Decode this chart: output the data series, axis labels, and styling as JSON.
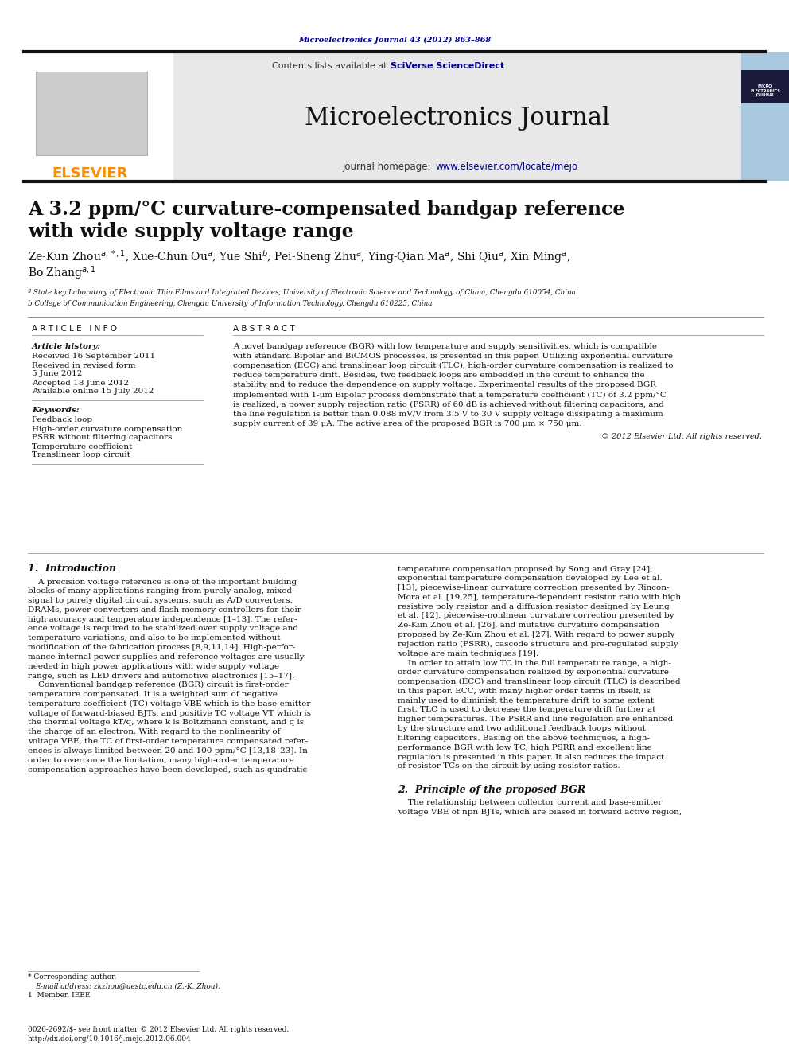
{
  "page_background": "#ffffff",
  "top_citation": "Microelectronics Journal 43 (2012) 863–868",
  "top_citation_color": "#00008B",
  "header_bg": "#e8e8e8",
  "header_journal_name": "Microelectronics Journal",
  "header_homepage_prefix": "journal homepage: ",
  "header_homepage_url": "www.elsevier.com/locate/mejo",
  "elsevier_color": "#FF8C00",
  "link_color": "#00008B",
  "paper_title_line1": "A 3.2 ppm/°C curvature-compensated bandgap reference",
  "paper_title_line2": "with wide supply voltage range",
  "affil_a": "ª State key Laboratory of Electronic Thin Films and Integrated Devices, University of Electronic Science and Technology of China, Chengdu 610054, China",
  "affil_b": "b College of Communication Engineering, Chengdu University of Information Technology, Chengdu 610225, China",
  "article_history_title": "Article history:",
  "received": "Received 16 September 2011",
  "received_revised": "Received in revised form",
  "revised_date": "5 June 2012",
  "accepted": "Accepted 18 June 2012",
  "available": "Available online 15 July 2012",
  "keywords_title": "Keywords:",
  "keyword1": "Feedback loop",
  "keyword2": "High-order curvature compensation",
  "keyword3": "PSRR without filtering capacitors",
  "keyword4": "Temperature coefficient",
  "keyword5": "Translinear loop circuit",
  "abstract_lines": [
    "A novel bandgap reference (BGR) with low temperature and supply sensitivities, which is compatible",
    "with standard Bipolar and BiCMOS processes, is presented in this paper. Utilizing exponential curvature",
    "compensation (ECC) and translinear loop circuit (TLC), high-order curvature compensation is realized to",
    "reduce temperature drift. Besides, two feedback loops are embedded in the circuit to enhance the",
    "stability and to reduce the dependence on supply voltage. Experimental results of the proposed BGR",
    "implemented with 1-μm Bipolar process demonstrate that a temperature coefficient (TC) of 3.2 ppm/°C",
    "is realized, a power supply rejection ratio (PSRR) of 60 dB is achieved without filtering capacitors, and",
    "the line regulation is better than 0.088 mV/V from 3.5 V to 30 V supply voltage dissipating a maximum",
    "supply current of 39 μA. The active area of the proposed BGR is 700 μm × 750 μm."
  ],
  "copyright": "© 2012 Elsevier Ltd. All rights reserved.",
  "section1_title": "1.  Introduction",
  "section1_col1": [
    "    A precision voltage reference is one of the important building",
    "blocks of many applications ranging from purely analog, mixed-",
    "signal to purely digital circuit systems, such as A/D converters,",
    "DRAMs, power converters and flash memory controllers for their",
    "high accuracy and temperature independence [1–13]. The refer-",
    "ence voltage is required to be stabilized over supply voltage and",
    "temperature variations, and also to be implemented without",
    "modification of the fabrication process [8,9,11,14]. High-perfor-",
    "mance internal power supplies and reference voltages are usually",
    "needed in high power applications with wide supply voltage",
    "range, such as LED drivers and automotive electronics [15–17].",
    "    Conventional bandgap reference (BGR) circuit is first-order",
    "temperature compensated. It is a weighted sum of negative",
    "temperature coefficient (TC) voltage VBE which is the base-emitter",
    "voltage of forward-biased BJTs, and positive TC voltage VT which is",
    "the thermal voltage kT/q, where k is Boltzmann constant, and q is",
    "the charge of an electron. With regard to the nonlinearity of",
    "voltage VBE, the TC of first-order temperature compensated refer-",
    "ences is always limited between 20 and 100 ppm/°C [13,18–23]. In",
    "order to overcome the limitation, many high-order temperature",
    "compensation approaches have been developed, such as quadratic"
  ],
  "section1_col2": [
    "temperature compensation proposed by Song and Gray [24],",
    "exponential temperature compensation developed by Lee et al.",
    "[13], piecewise-linear curvature correction presented by Rincon-",
    "Mora et al. [19,25], temperature-dependent resistor ratio with high",
    "resistive poly resistor and a diffusion resistor designed by Leung",
    "et al. [12], piecewise-nonlinear curvature correction presented by",
    "Ze-Kun Zhou et al. [26], and mutative curvature compensation",
    "proposed by Ze-Kun Zhou et al. [27]. With regard to power supply",
    "rejection ratio (PSRR), cascode structure and pre-regulated supply",
    "voltage are main techniques [19].",
    "    In order to attain low TC in the full temperature range, a high-",
    "order curvature compensation realized by exponential curvature",
    "compensation (ECC) and translinear loop circuit (TLC) is described",
    "in this paper. ECC, with many higher order terms in itself, is",
    "mainly used to diminish the temperature drift to some extent",
    "first. TLC is used to decrease the temperature drift further at",
    "higher temperatures. The PSRR and line regulation are enhanced",
    "by the structure and two additional feedback loops without",
    "filtering capacitors. Basing on the above techniques, a high-",
    "performance BGR with low TC, high PSRR and excellent line",
    "regulation is presented in this paper. It also reduces the impact",
    "of resistor TCs on the circuit by using resistor ratios."
  ],
  "section2_title": "2.  Principle of the proposed BGR",
  "section2_text": [
    "    The relationship between collector current and base-emitter",
    "voltage VBE of npn BJTs, which are biased in forward active region,"
  ],
  "footnote_star": "* Corresponding author.",
  "footnote_email": "E-mail address: zkzhou@uestc.edu.cn (Z.-K. Zhou).",
  "footnote_1": "1  Member, IEEE",
  "footer_left": "0026-2692/$- see front matter © 2012 Elsevier Ltd. All rights reserved.",
  "footer_doi": "http://dx.doi.org/10.1016/j.mejo.2012.06.004"
}
